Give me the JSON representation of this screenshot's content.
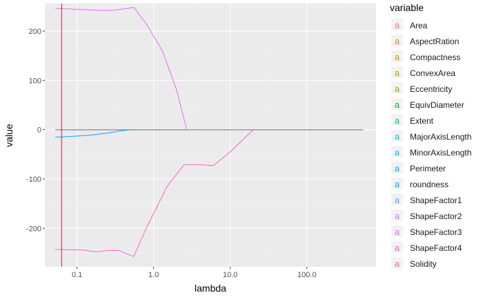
{
  "chart_data": {
    "type": "line",
    "xlabel": "lambda",
    "ylabel": "value",
    "xscale": "log10",
    "xlim": [
      0.038,
      800
    ],
    "ylim": [
      -278,
      256
    ],
    "x_ticks": [
      {
        "value": 0.1,
        "label": "0.1"
      },
      {
        "value": 1,
        "label": "1.0"
      },
      {
        "value": 10,
        "label": "10.0"
      },
      {
        "value": 100,
        "label": "100.0"
      }
    ],
    "y_ticks": [
      {
        "value": 200,
        "label": "200"
      },
      {
        "value": 100,
        "label": "100"
      },
      {
        "value": 0,
        "label": "0"
      },
      {
        "value": -100,
        "label": "-100"
      },
      {
        "value": -200,
        "label": "-200"
      }
    ],
    "grid": true,
    "vline": {
      "x": 0.063,
      "color": "#e41a1c"
    },
    "legend_title": "variable",
    "legend_position": "right",
    "legend_symbol": "a",
    "series": [
      {
        "name": "Area",
        "color": "#F8766D",
        "x": [
          0.052,
          540
        ],
        "y": [
          0,
          0
        ]
      },
      {
        "name": "AspectRation",
        "color": "#E7861B",
        "x": [
          0.052,
          540
        ],
        "y": [
          0,
          0
        ]
      },
      {
        "name": "Compactness",
        "color": "#D39200",
        "x": [
          0.052,
          540
        ],
        "y": [
          0,
          0
        ]
      },
      {
        "name": "ConvexArea",
        "color": "#B79F00",
        "x": [
          0.052,
          540
        ],
        "y": [
          0,
          0
        ]
      },
      {
        "name": "Eccentricity",
        "color": "#93AA00",
        "x": [
          0.052,
          540
        ],
        "y": [
          0,
          0
        ]
      },
      {
        "name": "EquivDiameter",
        "color": "#00BA38",
        "x": [
          0.052,
          540
        ],
        "y": [
          0,
          0
        ]
      },
      {
        "name": "Extent",
        "color": "#00C19F",
        "x": [
          0.052,
          540
        ],
        "y": [
          0,
          0
        ]
      },
      {
        "name": "MajorAxisLength",
        "color": "#00BFC4",
        "x": [
          0.052,
          540
        ],
        "y": [
          0,
          0
        ]
      },
      {
        "name": "MinorAxisLength",
        "color": "#00B9E3",
        "x": [
          0.052,
          540
        ],
        "y": [
          0,
          0
        ]
      },
      {
        "name": "Perimeter",
        "color": "#00ADFA",
        "x": [
          0.052,
          540
        ],
        "y": [
          0,
          0
        ]
      },
      {
        "name": "roundness",
        "color": "#00A9FF",
        "x": [
          0.052,
          0.08,
          0.15,
          0.25,
          0.35,
          0.45,
          0.55,
          540
        ],
        "y": [
          -15,
          -14,
          -11,
          -7,
          -3,
          -1,
          0,
          0
        ]
      },
      {
        "name": "ShapeFactor1",
        "color": "#619CFF",
        "x": [
          0.052,
          540
        ],
        "y": [
          0,
          0
        ]
      },
      {
        "name": "ShapeFactor2",
        "color": "#C77CFF",
        "x": [
          0.052,
          540
        ],
        "y": [
          0,
          0
        ]
      },
      {
        "name": "ShapeFactor3",
        "color": "#E76BF3",
        "x": [
          0.052,
          0.1,
          0.2,
          0.3,
          0.45,
          0.55,
          0.8,
          1.3,
          2.0,
          2.7,
          540
        ],
        "y": [
          246,
          244,
          242,
          242,
          246,
          248,
          215,
          160,
          80,
          0,
          0
        ]
      },
      {
        "name": "ShapeFactor4",
        "color": "#FF61C3",
        "x": [
          0.052,
          0.12,
          0.18,
          0.25,
          0.35,
          0.45,
          0.55,
          0.8,
          1.5,
          2.5,
          4,
          6,
          10,
          20,
          540
        ],
        "y": [
          -243,
          -244,
          -248,
          -245,
          -245,
          -252,
          -257,
          -200,
          -115,
          -71,
          -71,
          -73,
          -45,
          0,
          0
        ]
      },
      {
        "name": "Solidity",
        "color": "#FF6C91",
        "x": [
          0.052,
          540
        ],
        "y": [
          0,
          0
        ]
      }
    ]
  }
}
